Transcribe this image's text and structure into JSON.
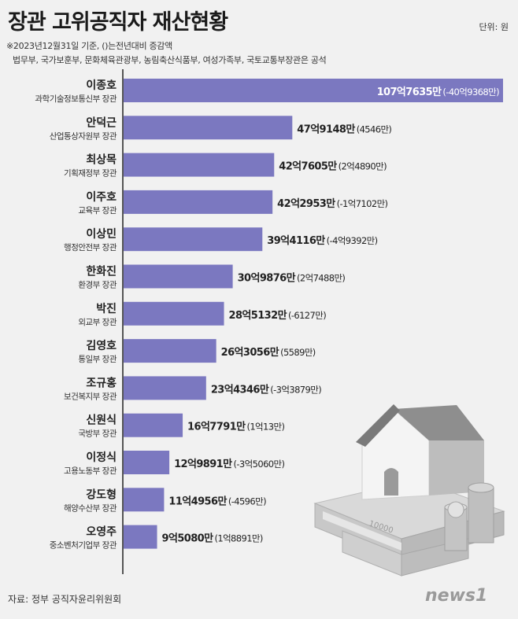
{
  "header": {
    "title": "장관 고위공직자 재산현황",
    "unit": "단위: 원",
    "note1": "※2023년12월31일 기준, ()는전년대비 증감액",
    "note2": "법무부, 국가보훈부, 문화체육관광부, 농림축산식품부, 여성가족부, 국토교통부장관은 공석"
  },
  "footer": {
    "source": "자료: 정부 공직자윤리위원회",
    "logo_text": "news1"
  },
  "colors": {
    "bar": "#7b78c0",
    "background": "#f1f1f1"
  },
  "chart_data": {
    "type": "bar",
    "orientation": "horizontal",
    "categories": [
      {
        "name": "이종호",
        "ministry": "과학기술정보통신부 장관"
      },
      {
        "name": "안덕근",
        "ministry": "산업통상자원부 장관"
      },
      {
        "name": "최상목",
        "ministry": "기획재정부 장관"
      },
      {
        "name": "이주호",
        "ministry": "교육부 장관"
      },
      {
        "name": "이상민",
        "ministry": "행정안전부 장관"
      },
      {
        "name": "한화진",
        "ministry": "환경부 장관"
      },
      {
        "name": "박진",
        "ministry": "외교부 장관"
      },
      {
        "name": "김영호",
        "ministry": "통일부 장관"
      },
      {
        "name": "조규홍",
        "ministry": "보건복지부 장관"
      },
      {
        "name": "신원식",
        "ministry": "국방부 장관"
      },
      {
        "name": "이정식",
        "ministry": "고용노동부 장관"
      },
      {
        "name": "강도형",
        "ministry": "해양수산부 장관"
      },
      {
        "name": "오영주",
        "ministry": "중소벤처기업부 장관"
      }
    ],
    "values": [
      10776350000,
      4791480000,
      4276050000,
      4229530000,
      3941160000,
      3098760000,
      2851320000,
      2630560000,
      2343460000,
      1677910000,
      1298910000,
      1149560000,
      950800000
    ],
    "value_labels": [
      "107억7635만",
      "47억9148만",
      "42억7605만",
      "42억2953만",
      "39억4116만",
      "30억9876만",
      "28억5132만",
      "26억3056만",
      "23억4346만",
      "16억7791만",
      "12억9891만",
      "11억4956만",
      "9억5080만"
    ],
    "change_labels": [
      "(-40억9368만)",
      "(4546만)",
      "(2억4890만)",
      "(-1억7102만)",
      "(-4억9392만)",
      "(2억7488만)",
      "(-6127만)",
      "(5589만)",
      "(-3억3879만)",
      "(1억13만)",
      "(-3억5060만)",
      "(-4596만)",
      "(1억8891만)"
    ]
  }
}
